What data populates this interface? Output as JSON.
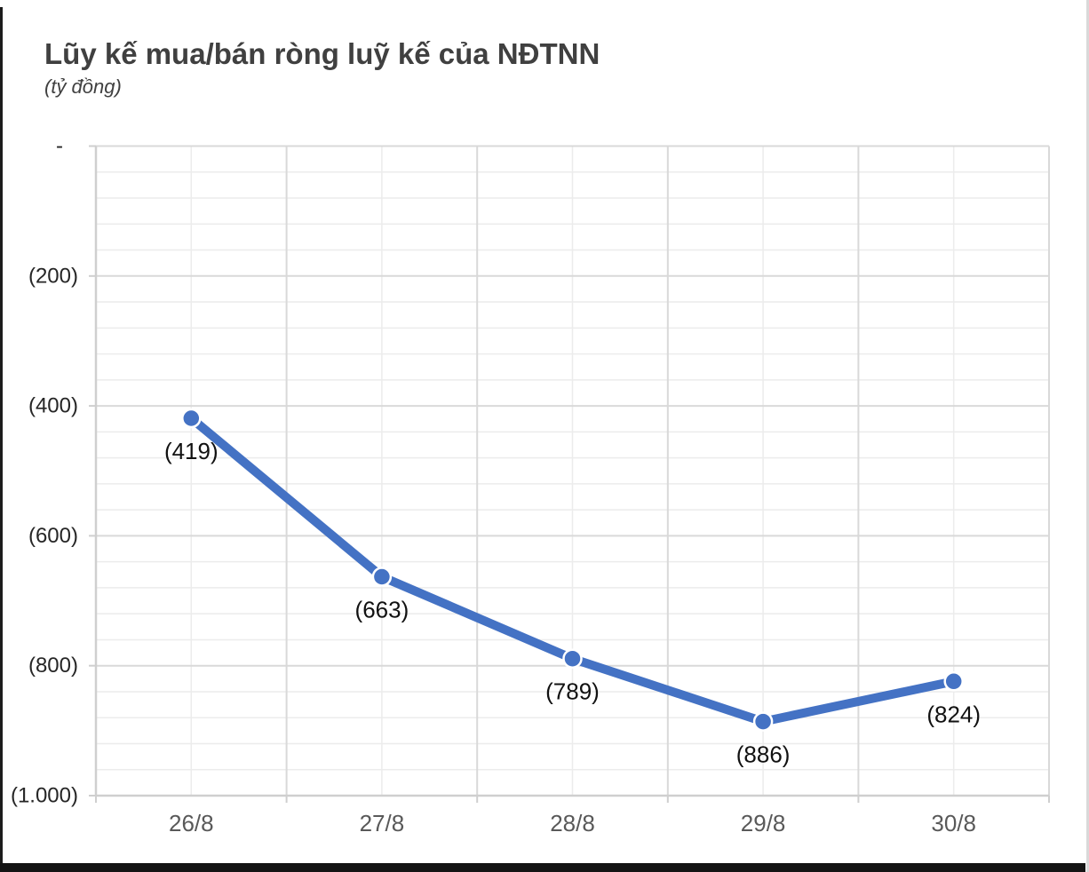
{
  "chart_data": {
    "type": "line",
    "title": "Lũy kế mua/bán ròng luỹ kế của NĐTNN",
    "subtitle": "(tỷ đồng)",
    "categories": [
      "26/8",
      "27/8",
      "28/8",
      "29/8",
      "30/8"
    ],
    "values": [
      -419,
      -663,
      -789,
      -886,
      -824
    ],
    "data_labels": [
      "(419)",
      "(663)",
      "(789)",
      "(886)",
      "(824)"
    ],
    "ylim": [
      -1000,
      0
    ],
    "y_major_unit": 200,
    "y_minor_unit": 40,
    "y_tick_labels": [
      {
        "value": 0,
        "label": "-"
      },
      {
        "value": -200,
        "label": "(200)"
      },
      {
        "value": -400,
        "label": "(400)"
      },
      {
        "value": -600,
        "label": "(600)"
      },
      {
        "value": -800,
        "label": "(800)"
      },
      {
        "value": -1000,
        "label": "(1.000)"
      }
    ],
    "legend": "none",
    "grid": {
      "horizontal_major": true,
      "horizontal_minor": true,
      "vertical_major": true,
      "vertical_minor": true
    },
    "colors": {
      "series_line": "#4472C4",
      "marker_fill": "#4472C4",
      "marker_border": "#FFFFFF",
      "major_gridline": "#D9D9D9",
      "minor_gridline": "#ECECEC",
      "axis_line": "#CFCFCF",
      "title_text": "#404040",
      "y_tick_text": "#262626",
      "x_tick_text": "#595959",
      "data_label_text": "#111111"
    }
  }
}
